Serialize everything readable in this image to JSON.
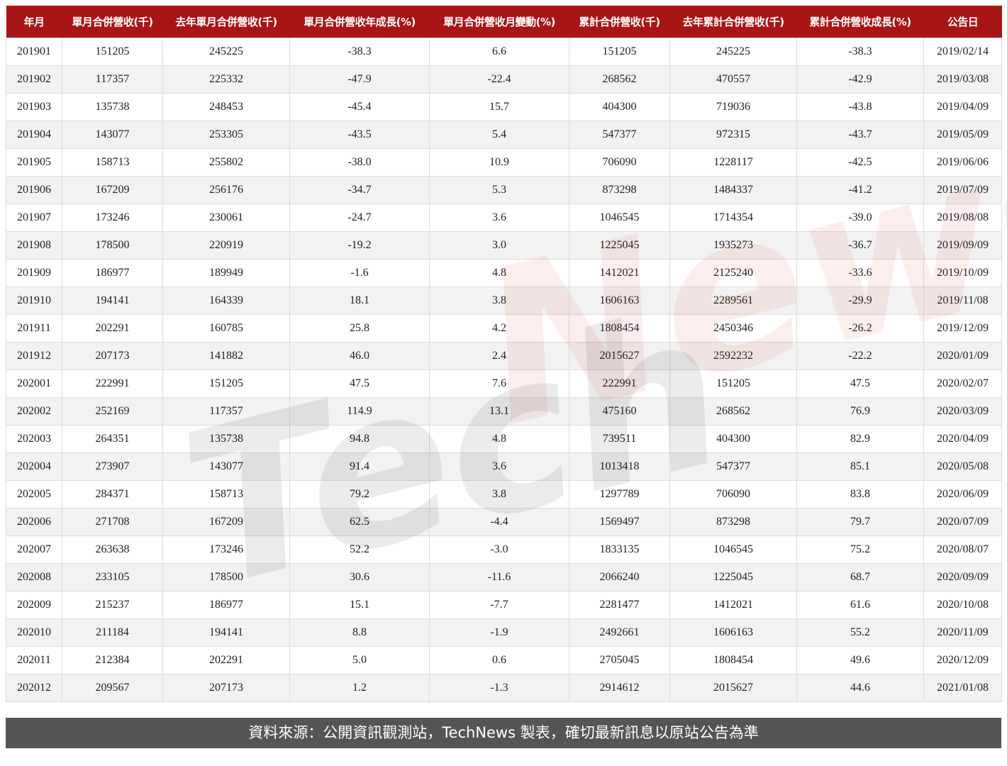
{
  "watermark": "TechNews",
  "colors": {
    "header_bg": "#a71515",
    "footer_bg": "#555555",
    "stripe": "#f2f2f2"
  },
  "chart_data": {
    "type": "table",
    "columns": [
      "年月",
      "單月合併營收(千)",
      "去年單月合併營收(千)",
      "單月合併營收年成長(%)",
      "單月合併營收月變動(%)",
      "累計合併營收(千)",
      "去年累計合併營收(千)",
      "累計合併營收成長(%)",
      "公告日"
    ],
    "rows": [
      [
        "201901",
        "151205",
        "245225",
        "-38.3",
        "6.6",
        "151205",
        "245225",
        "-38.3",
        "2019/02/14"
      ],
      [
        "201902",
        "117357",
        "225332",
        "-47.9",
        "-22.4",
        "268562",
        "470557",
        "-42.9",
        "2019/03/08"
      ],
      [
        "201903",
        "135738",
        "248453",
        "-45.4",
        "15.7",
        "404300",
        "719036",
        "-43.8",
        "2019/04/09"
      ],
      [
        "201904",
        "143077",
        "253305",
        "-43.5",
        "5.4",
        "547377",
        "972315",
        "-43.7",
        "2019/05/09"
      ],
      [
        "201905",
        "158713",
        "255802",
        "-38.0",
        "10.9",
        "706090",
        "1228117",
        "-42.5",
        "2019/06/06"
      ],
      [
        "201906",
        "167209",
        "256176",
        "-34.7",
        "5.3",
        "873298",
        "1484337",
        "-41.2",
        "2019/07/09"
      ],
      [
        "201907",
        "173246",
        "230061",
        "-24.7",
        "3.6",
        "1046545",
        "1714354",
        "-39.0",
        "2019/08/08"
      ],
      [
        "201908",
        "178500",
        "220919",
        "-19.2",
        "3.0",
        "1225045",
        "1935273",
        "-36.7",
        "2019/09/09"
      ],
      [
        "201909",
        "186977",
        "189949",
        "-1.6",
        "4.8",
        "1412021",
        "2125240",
        "-33.6",
        "2019/10/09"
      ],
      [
        "201910",
        "194141",
        "164339",
        "18.1",
        "3.8",
        "1606163",
        "2289561",
        "-29.9",
        "2019/11/08"
      ],
      [
        "201911",
        "202291",
        "160785",
        "25.8",
        "4.2",
        "1808454",
        "2450346",
        "-26.2",
        "2019/12/09"
      ],
      [
        "201912",
        "207173",
        "141882",
        "46.0",
        "2.4",
        "2015627",
        "2592232",
        "-22.2",
        "2020/01/09"
      ],
      [
        "202001",
        "222991",
        "151205",
        "47.5",
        "7.6",
        "222991",
        "151205",
        "47.5",
        "2020/02/07"
      ],
      [
        "202002",
        "252169",
        "117357",
        "114.9",
        "13.1",
        "475160",
        "268562",
        "76.9",
        "2020/03/09"
      ],
      [
        "202003",
        "264351",
        "135738",
        "94.8",
        "4.8",
        "739511",
        "404300",
        "82.9",
        "2020/04/09"
      ],
      [
        "202004",
        "273907",
        "143077",
        "91.4",
        "3.6",
        "1013418",
        "547377",
        "85.1",
        "2020/05/08"
      ],
      [
        "202005",
        "284371",
        "158713",
        "79.2",
        "3.8",
        "1297789",
        "706090",
        "83.8",
        "2020/06/09"
      ],
      [
        "202006",
        "271708",
        "167209",
        "62.5",
        "-4.4",
        "1569497",
        "873298",
        "79.7",
        "2020/07/09"
      ],
      [
        "202007",
        "263638",
        "173246",
        "52.2",
        "-3.0",
        "1833135",
        "1046545",
        "75.2",
        "2020/08/07"
      ],
      [
        "202008",
        "233105",
        "178500",
        "30.6",
        "-11.6",
        "2066240",
        "1225045",
        "68.7",
        "2020/09/09"
      ],
      [
        "202009",
        "215237",
        "186977",
        "15.1",
        "-7.7",
        "2281477",
        "1412021",
        "61.6",
        "2020/10/08"
      ],
      [
        "202010",
        "211184",
        "194141",
        "8.8",
        "-1.9",
        "2492661",
        "1606163",
        "55.2",
        "2020/11/09"
      ],
      [
        "202011",
        "212384",
        "202291",
        "5.0",
        "0.6",
        "2705045",
        "1808454",
        "49.6",
        "2020/12/09"
      ],
      [
        "202012",
        "209567",
        "207173",
        "1.2",
        "-1.3",
        "2914612",
        "2015627",
        "44.6",
        "2021/01/08"
      ]
    ]
  },
  "footer": {
    "text": "資料來源：公開資訊觀測站，TechNews 製表，確切最新訊息以原站公告為準"
  }
}
